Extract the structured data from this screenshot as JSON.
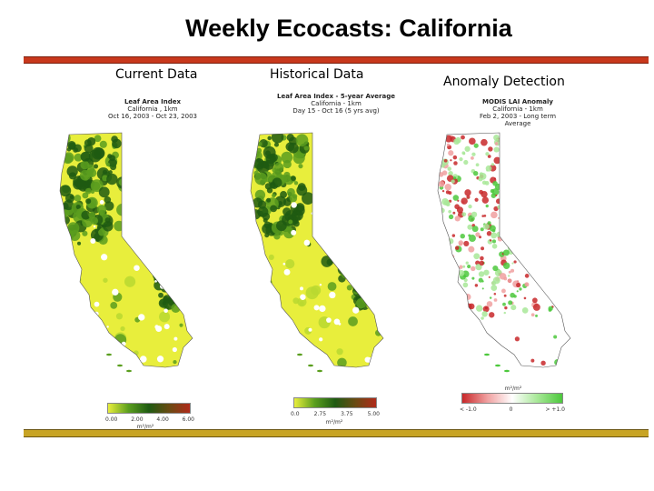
{
  "slide": {
    "title": "Weekly Ecocasts: California"
  },
  "panels": [
    {
      "label": "Current Data",
      "header_lines": [
        "Leaf Area Index",
        "California , 1km",
        "Oct 16, 2003 - Oct 23, 2003"
      ],
      "legend_ticks": [
        "0.00",
        "2.00",
        "4.00",
        "6.00"
      ],
      "legend_unit": "m²/m²",
      "palette": "lai"
    },
    {
      "label": "Historical Data",
      "header_lines": [
        "Leaf Area Index - 5-year Average",
        "California - 1km",
        "Day 15 - Oct 16 (5 yrs avg)"
      ],
      "legend_ticks": [
        "0.0",
        "2.75",
        "3.75",
        "5.00"
      ],
      "legend_unit": "m²/m²",
      "palette": "lai"
    },
    {
      "label": "Anomaly Detection",
      "header_lines": [
        "MODIS LAI Anomaly",
        "California - 1km",
        "Feb 2, 2003 - Long term Average"
      ],
      "legend_ticks": [
        "< -1.0",
        "0",
        "> +1.0"
      ],
      "legend_unit": "m²/m²",
      "palette": "anomaly"
    }
  ],
  "colors": {
    "accent_top_rule": "#c8381c",
    "accent_bottom_rule": "#c8a424",
    "lai_low": "#e8ee3c",
    "lai_mid": "#5a9e1e",
    "lai_high": "#1f5a12",
    "lai_max": "#b02a1a",
    "anomaly_negative": "#c8282a",
    "anomaly_neutral": "#ffffff",
    "anomaly_positive": "#4cc83c"
  }
}
